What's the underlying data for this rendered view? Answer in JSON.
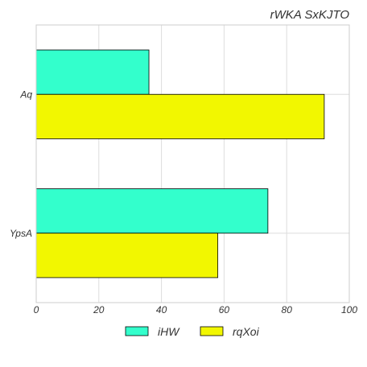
{
  "chart_data": {
    "type": "bar",
    "orientation": "horizontal",
    "title": "rWKA SxKJTO",
    "xlabel": "",
    "ylabel": "",
    "categories": [
      "Aq",
      "YpsA"
    ],
    "series": [
      {
        "name": "iHW",
        "values": [
          36,
          74
        ],
        "color": "#33ffcc"
      },
      {
        "name": "rqXoi",
        "values": [
          92,
          58
        ],
        "color": "#f2f700"
      }
    ],
    "xlim": [
      0,
      100
    ],
    "xticks": [
      "0",
      "20",
      "40",
      "60",
      "80",
      "100"
    ],
    "grid": true,
    "legend_position": "bottom-center"
  }
}
